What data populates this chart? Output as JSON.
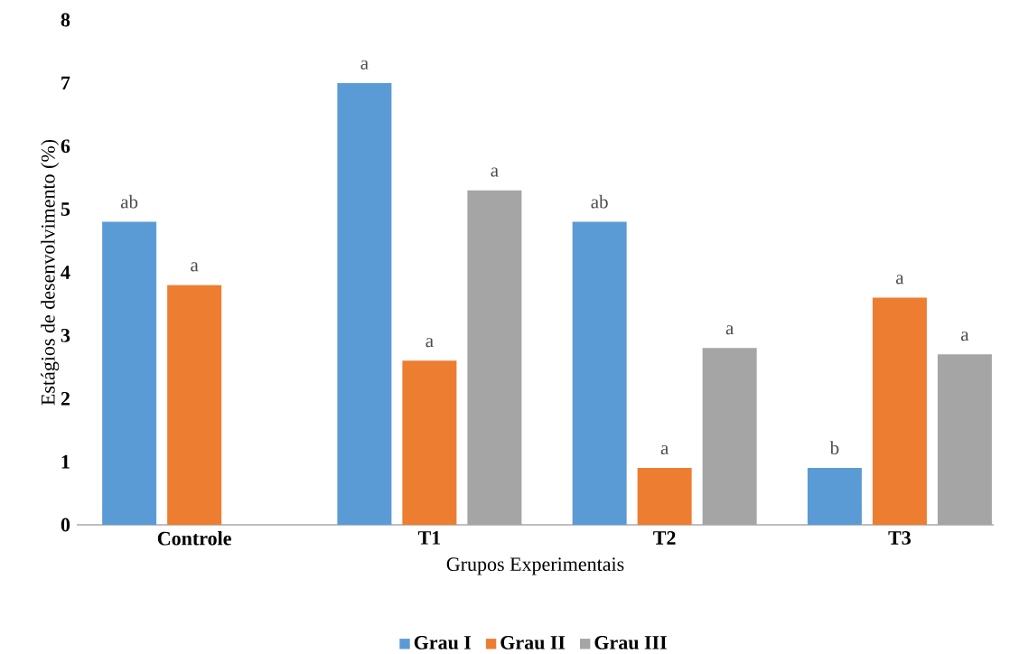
{
  "chart_data": {
    "type": "bar",
    "xlabel": "Grupos Experimentais",
    "ylabel": "Estágios de desenvolvimento (%)",
    "categories": [
      "Controle",
      "T1",
      "T2",
      "T3"
    ],
    "series": [
      {
        "name": "Grau I",
        "color": "#5b9bd5",
        "values": [
          4.8,
          7.0,
          4.8,
          0.9
        ],
        "value_labels": [
          "ab",
          "a",
          "ab",
          "b"
        ]
      },
      {
        "name": "Grau II",
        "color": "#ed7d31",
        "values": [
          3.8,
          2.6,
          0.9,
          3.6
        ],
        "value_labels": [
          "a",
          "a",
          "a",
          "a"
        ]
      },
      {
        "name": "Grau III",
        "color": "#a5a5a5",
        "values": [
          null,
          5.3,
          2.8,
          2.7
        ],
        "value_labels": [
          null,
          "a",
          "a",
          "a"
        ]
      }
    ],
    "ylim": [
      0,
      8
    ],
    "yticks": [
      0,
      1,
      2,
      3,
      4,
      5,
      6,
      7,
      8
    ],
    "legend": "bottom"
  }
}
